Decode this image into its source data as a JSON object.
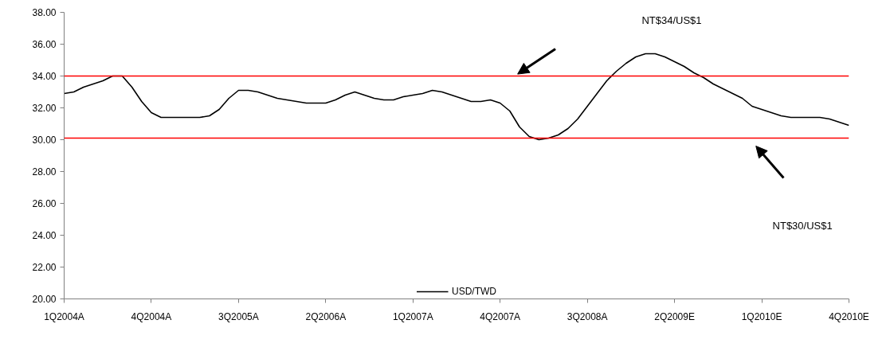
{
  "chart_data": {
    "type": "line",
    "legend": "bottom",
    "grid": false,
    "marker": "none",
    "line_style": "solid",
    "ylim": [
      20,
      38
    ],
    "categories": [
      "1Q2004A",
      null,
      null,
      null,
      null,
      null,
      null,
      null,
      null,
      "4Q2004A",
      null,
      null,
      null,
      null,
      null,
      null,
      null,
      null,
      "3Q2005A",
      null,
      null,
      null,
      null,
      null,
      null,
      null,
      null,
      "2Q2006A",
      null,
      null,
      null,
      null,
      null,
      null,
      null,
      null,
      "1Q2007A",
      null,
      null,
      null,
      null,
      null,
      null,
      null,
      null,
      "4Q2007A",
      null,
      null,
      null,
      null,
      null,
      null,
      null,
      null,
      "3Q2008A",
      null,
      null,
      null,
      null,
      null,
      null,
      null,
      null,
      "2Q2009E",
      null,
      null,
      null,
      null,
      null,
      null,
      null,
      null,
      "1Q2010E",
      null,
      null,
      null,
      null,
      null,
      null,
      null,
      null,
      "4Q2010E"
    ],
    "yticks": [
      {
        "value": 20,
        "label": "20.00"
      },
      {
        "value": 22,
        "label": "22.00"
      },
      {
        "value": 24,
        "label": "24.00"
      },
      {
        "value": 26,
        "label": "26.00"
      },
      {
        "value": 28,
        "label": "28.00"
      },
      {
        "value": 30,
        "label": "30.00"
      },
      {
        "value": 32,
        "label": "32.00"
      },
      {
        "value": 34,
        "label": "34.00"
      },
      {
        "value": 36,
        "label": "36.00"
      },
      {
        "value": 38,
        "label": "38.00"
      }
    ],
    "series": [
      {
        "name": "USD/TWD",
        "color": "#000000",
        "values": [
          32.9,
          33.0,
          33.3,
          33.5,
          33.7,
          34.0,
          34.0,
          33.3,
          32.4,
          31.7,
          31.4,
          31.4,
          31.4,
          31.4,
          31.4,
          31.5,
          31.9,
          32.6,
          33.1,
          33.1,
          33.0,
          32.8,
          32.6,
          32.5,
          32.4,
          32.3,
          32.3,
          32.3,
          32.5,
          32.8,
          33.0,
          32.8,
          32.6,
          32.5,
          32.5,
          32.7,
          32.8,
          32.9,
          33.1,
          33.0,
          32.8,
          32.6,
          32.4,
          32.4,
          32.5,
          32.3,
          31.8,
          30.8,
          30.2,
          30.0,
          30.1,
          30.3,
          30.7,
          31.3,
          32.1,
          32.9,
          33.7,
          34.3,
          34.8,
          35.2,
          35.4,
          35.4,
          35.2,
          34.9,
          34.6,
          34.2,
          33.9,
          33.5,
          33.2,
          32.9,
          32.6,
          32.1,
          31.9,
          31.7,
          31.5,
          31.4,
          31.4,
          31.4,
          31.4,
          31.3,
          31.1,
          30.9
        ]
      }
    ],
    "annotations": [
      "NT$34/US$1",
      "NT$30/US$1"
    ],
    "ref_lines": [
      {
        "axis": "y",
        "value": 34.0,
        "color": "#ff0000"
      },
      {
        "axis": "y",
        "value": 30.1,
        "color": "#ff0000"
      }
    ]
  }
}
